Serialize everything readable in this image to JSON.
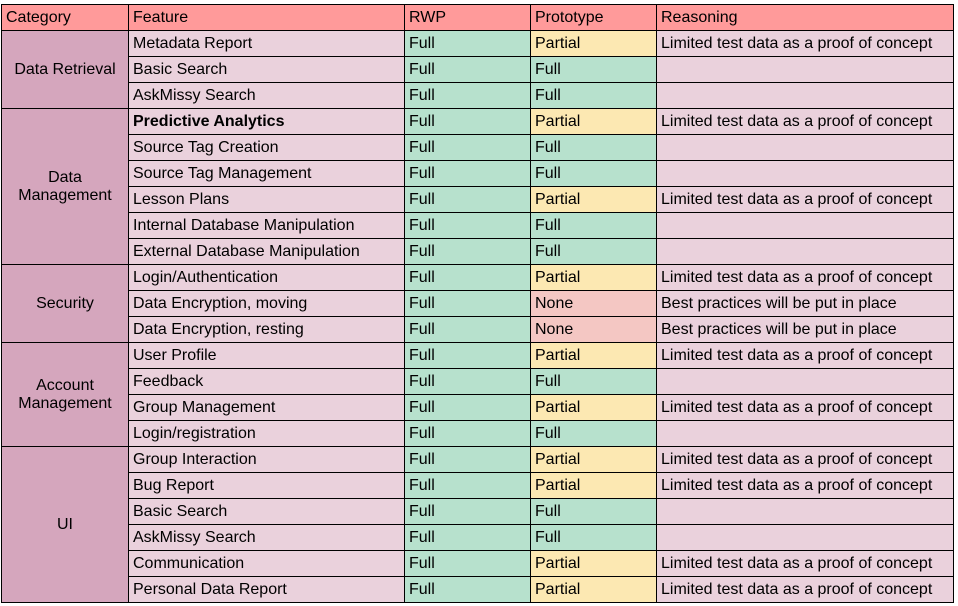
{
  "headers": [
    "Category",
    "Feature",
    "RWP",
    "Prototype",
    "Reasoning"
  ],
  "colors": {
    "header": "#ff9a9a",
    "category": "#d5a6bd",
    "row": "#ead1dc",
    "full": "#b7e1cd",
    "partial": "#fce8b2",
    "none": "#f4c7c3"
  },
  "groups": [
    {
      "category": "Data Retrieval",
      "rows": [
        {
          "feature": "Metadata Report",
          "rwp": "Full",
          "prototype": "Partial",
          "reasoning": "Limited test data as a proof of concept"
        },
        {
          "feature": "Basic Search",
          "rwp": "Full",
          "prototype": "Full",
          "reasoning": ""
        },
        {
          "feature": "AskMissy Search",
          "rwp": "Full",
          "prototype": "Full",
          "reasoning": ""
        }
      ]
    },
    {
      "category": "Data Management",
      "rows": [
        {
          "feature": "Predictive Analytics",
          "bold": true,
          "rwp": "Full",
          "prototype": "Partial",
          "reasoning": "Limited test data as a proof of concept"
        },
        {
          "feature": "Source Tag Creation",
          "rwp": "Full",
          "prototype": "Full",
          "reasoning": ""
        },
        {
          "feature": "Source Tag Management",
          "rwp": "Full",
          "prototype": "Full",
          "reasoning": ""
        },
        {
          "feature": "Lesson Plans",
          "rwp": "Full",
          "prototype": "Partial",
          "reasoning": "Limited test data as a proof of concept"
        },
        {
          "feature": "Internal Database Manipulation",
          "rwp": "Full",
          "prototype": "Full",
          "reasoning": ""
        },
        {
          "feature": "External Database Manipulation",
          "rwp": "Full",
          "prototype": "Full",
          "reasoning": ""
        }
      ]
    },
    {
      "category": "Security",
      "rows": [
        {
          "feature": "Login/Authentication",
          "rwp": "Full",
          "prototype": "Partial",
          "reasoning": "Limited test data as a proof of concept"
        },
        {
          "feature": "Data Encryption, moving",
          "rwp": "Full",
          "prototype": "None",
          "reasoning": "Best practices will be put in place"
        },
        {
          "feature": "Data Encryption, resting",
          "rwp": "Full",
          "prototype": "None",
          "reasoning": "Best practices will be put in place"
        }
      ]
    },
    {
      "category": "Account Management",
      "rows": [
        {
          "feature": "User Profile",
          "rwp": "Full",
          "prototype": "Partial",
          "reasoning": "Limited test data as a proof of concept"
        },
        {
          "feature": "Feedback",
          "rwp": "Full",
          "prototype": "Full",
          "reasoning": ""
        },
        {
          "feature": "Group Management",
          "rwp": "Full",
          "prototype": "Partial",
          "reasoning": "Limited test data as a proof of concept"
        },
        {
          "feature": "Login/registration",
          "rwp": "Full",
          "prototype": "Full",
          "reasoning": ""
        }
      ]
    },
    {
      "category": "UI",
      "rows": [
        {
          "feature": "Group Interaction",
          "rwp": "Full",
          "prototype": "Partial",
          "reasoning": "Limited test data as a proof of concept"
        },
        {
          "feature": "Bug Report",
          "rwp": "Full",
          "prototype": "Partial",
          "reasoning": "Limited test data as a proof of concept"
        },
        {
          "feature": "Basic Search",
          "rwp": "Full",
          "prototype": "Full",
          "reasoning": ""
        },
        {
          "feature": "AskMissy Search",
          "rwp": "Full",
          "prototype": "Full",
          "reasoning": ""
        },
        {
          "feature": "Communication",
          "rwp": "Full",
          "prototype": "Partial",
          "reasoning": "Limited test data as a proof of concept"
        },
        {
          "feature": "Personal Data Report",
          "rwp": "Full",
          "prototype": "Partial",
          "reasoning": "Limited test data as a proof of concept"
        }
      ]
    }
  ]
}
